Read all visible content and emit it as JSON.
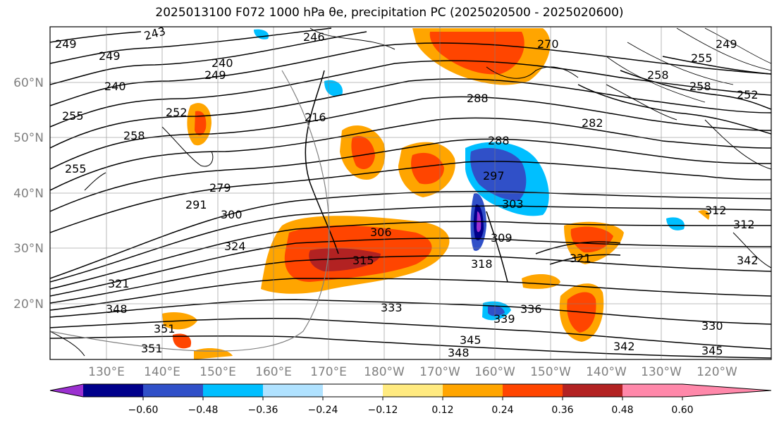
{
  "title": "2025013100 F072 1000 hPa θe, precipitation PC (2025020500 - 2025020600)",
  "map": {
    "lat_labels": [
      "60°N",
      "50°N",
      "40°N",
      "30°N",
      "20°N"
    ],
    "lon_labels": [
      "130°E",
      "140°E",
      "150°E",
      "160°E",
      "170°E",
      "180°W",
      "170°W",
      "160°W",
      "150°W",
      "140°W",
      "130°W",
      "120°W"
    ],
    "contour_labels": [
      "243",
      "249",
      "249",
      "240",
      "249",
      "246",
      "270",
      "249",
      "252",
      "258",
      "258",
      "255",
      "240",
      "216",
      "288",
      "282",
      "255",
      "258",
      "252",
      "255",
      "288",
      "297",
      "279",
      "303",
      "291",
      "300",
      "306",
      "309",
      "318",
      "312",
      "324",
      "315",
      "321",
      "321",
      "333",
      "336",
      "339",
      "348",
      "351",
      "345",
      "348",
      "342",
      "330",
      "345",
      "351",
      "312",
      "342"
    ]
  },
  "colorbar": {
    "colors": [
      "#9b30d0",
      "#00008b",
      "#3050c8",
      "#00bfff",
      "#b0e2ff",
      "#ffffff",
      "#ffea80",
      "#ffa500",
      "#ff4500",
      "#b22222",
      "#ff88aa"
    ],
    "tick_labels": [
      "−0.60",
      "−0.48",
      "−0.36",
      "−0.24",
      "−0.12",
      "0.12",
      "0.24",
      "0.36",
      "0.48",
      "0.60"
    ]
  }
}
